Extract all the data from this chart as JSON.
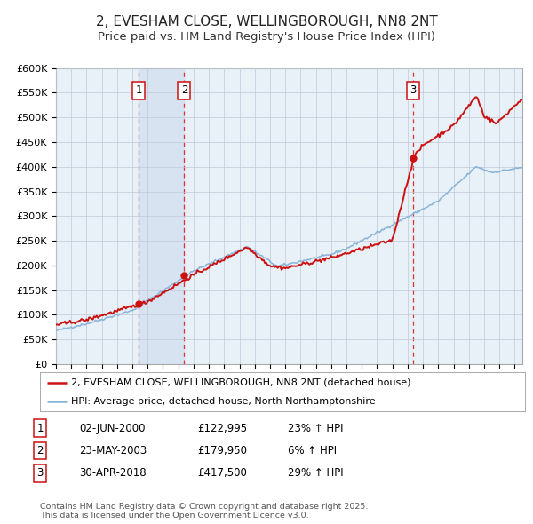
{
  "title": "2, EVESHAM CLOSE, WELLINGBOROUGH, NN8 2NT",
  "subtitle": "Price paid vs. HM Land Registry's House Price Index (HPI)",
  "title_fontsize": 11,
  "subtitle_fontsize": 9.5,
  "background_color": "#ffffff",
  "plot_bg_color": "#e8f0f8",
  "grid_color": "#c0c8d8",
  "hpi_line_color": "#88b4d8",
  "price_line_color": "#cc1111",
  "vline_color": "#dd3333",
  "shade_color": "#d0ddf0",
  "purchase_years": [
    2000.42,
    2003.39,
    2018.33
  ],
  "purchase_prices": [
    122995,
    179950,
    417500
  ],
  "purchase_labels": [
    "1",
    "2",
    "3"
  ],
  "legend_label_price": "2, EVESHAM CLOSE, WELLINGBOROUGH, NN8 2NT (detached house)",
  "legend_label_hpi": "HPI: Average price, detached house, North Northamptonshire",
  "table_rows": [
    [
      "1",
      "02-JUN-2000",
      "£122,995",
      "23% ↑ HPI"
    ],
    [
      "2",
      "23-MAY-2003",
      "£179,950",
      "6% ↑ HPI"
    ],
    [
      "3",
      "30-APR-2018",
      "£417,500",
      "29% ↑ HPI"
    ]
  ],
  "footer": "Contains HM Land Registry data © Crown copyright and database right 2025.\nThis data is licensed under the Open Government Licence v3.0.",
  "ylim": [
    0,
    600000
  ],
  "yticks": [
    0,
    50000,
    100000,
    150000,
    200000,
    250000,
    300000,
    350000,
    400000,
    450000,
    500000,
    550000,
    600000
  ],
  "yticklabels": [
    "£0",
    "£50K",
    "£100K",
    "£150K",
    "£200K",
    "£250K",
    "£300K",
    "£350K",
    "£400K",
    "£450K",
    "£500K",
    "£550K",
    "£600K"
  ],
  "xstart": 1995,
  "xend": 2025.5,
  "marker_size": 6
}
